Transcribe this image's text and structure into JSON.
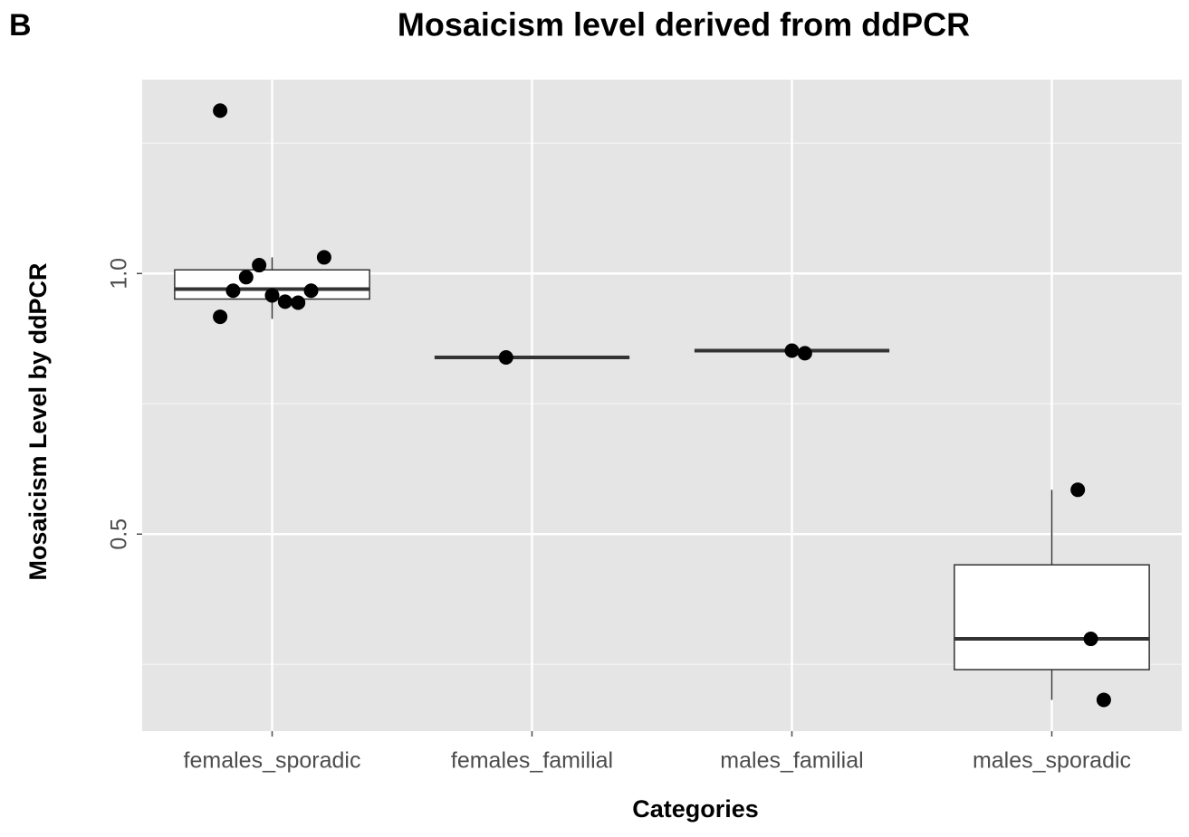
{
  "panel_label": "B",
  "chart_data": {
    "type": "box",
    "title": "Mosaicism level derived from ddPCR",
    "x_label": "Categories",
    "y_label": "Mosaicism Level by ddPCR",
    "categories": [
      "females_sporadic",
      "females_familial",
      "males_familial",
      "males_sporadic"
    ],
    "boxes": [
      {
        "whisker_low": 0.913,
        "q1": 0.951,
        "median": 0.97,
        "q3": 1.007,
        "whisker_high": 1.031
      },
      {
        "whisker_low": 0.839,
        "q1": 0.839,
        "median": 0.839,
        "q3": 0.839,
        "whisker_high": 0.839
      },
      {
        "whisker_low": 0.852,
        "q1": 0.852,
        "median": 0.852,
        "q3": 0.852,
        "whisker_high": 0.852
      },
      {
        "whisker_low": 0.182,
        "q1": 0.24,
        "median": 0.299,
        "q3": 0.441,
        "whisker_high": 0.585
      }
    ],
    "points": [
      [
        1.3125,
        0.967,
        0.993,
        1.016,
        0.958,
        0.946,
        0.944,
        0.967,
        1.031,
        0.917
      ],
      [
        0.839
      ],
      [
        0.852,
        0.847
      ],
      [
        0.585,
        0.299,
        0.182
      ]
    ],
    "point_color": "#000000",
    "box_color": "#ffffff",
    "panel_color": "#e5e5e5",
    "ylim": [
      0.122,
      1.372
    ],
    "yticks": [
      {
        "value": 0.5,
        "label": "0.5"
      },
      {
        "value": 1,
        "label": "1.0"
      }
    ],
    "minor_grid": [
      0.25,
      0.75,
      1.25
    ],
    "grid": true
  }
}
